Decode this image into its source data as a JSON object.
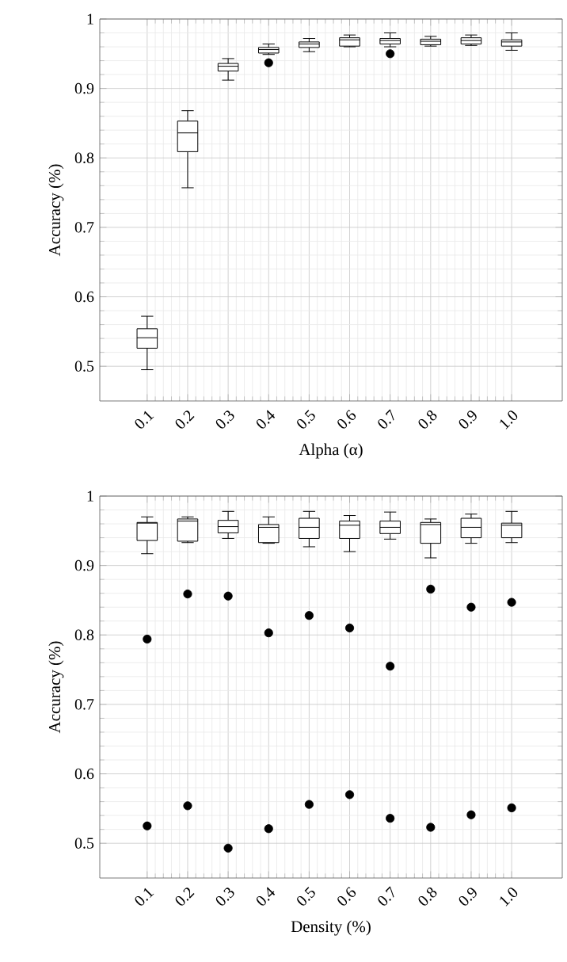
{
  "chart_data": [
    {
      "type": "box",
      "xlabel": "Alpha (α)",
      "ylabel": "Accuracy (%)",
      "grid": true,
      "categories": [
        "0.1",
        "0.2",
        "0.3",
        "0.4",
        "0.5",
        "0.6",
        "0.7",
        "0.8",
        "0.9",
        "1.0"
      ],
      "ylim": [
        0.45,
        1
      ],
      "yticks": [
        0.5,
        0.6,
        0.7,
        0.8,
        0.9,
        1
      ],
      "boxes": [
        {
          "low": 0.495,
          "q1": 0.526,
          "median": 0.541,
          "q3": 0.554,
          "high": 0.572
        },
        {
          "low": 0.757,
          "q1": 0.809,
          "median": 0.836,
          "q3": 0.853,
          "high": 0.868
        },
        {
          "low": 0.912,
          "q1": 0.925,
          "median": 0.932,
          "q3": 0.936,
          "high": 0.943
        },
        {
          "low": 0.949,
          "q1": 0.951,
          "median": 0.956,
          "q3": 0.959,
          "high": 0.964,
          "outliers": [
            0.937
          ]
        },
        {
          "low": 0.953,
          "q1": 0.959,
          "median": 0.964,
          "q3": 0.967,
          "high": 0.972
        },
        {
          "low": 0.96,
          "q1": 0.961,
          "median": 0.97,
          "q3": 0.973,
          "high": 0.977
        },
        {
          "low": 0.96,
          "q1": 0.964,
          "median": 0.969,
          "q3": 0.972,
          "high": 0.98,
          "outliers": [
            0.95
          ]
        },
        {
          "low": 0.961,
          "q1": 0.963,
          "median": 0.968,
          "q3": 0.971,
          "high": 0.975
        },
        {
          "low": 0.962,
          "q1": 0.964,
          "median": 0.969,
          "q3": 0.973,
          "high": 0.977
        },
        {
          "low": 0.955,
          "q1": 0.961,
          "median": 0.967,
          "q3": 0.97,
          "high": 0.98
        }
      ]
    },
    {
      "type": "box",
      "xlabel": "Density (%)",
      "ylabel": "Accuracy (%)",
      "grid": true,
      "categories": [
        "0.1",
        "0.2",
        "0.3",
        "0.4",
        "0.5",
        "0.6",
        "0.7",
        "0.8",
        "0.9",
        "1.0"
      ],
      "ylim": [
        0.45,
        1
      ],
      "yticks": [
        0.5,
        0.6,
        0.7,
        0.8,
        0.9,
        1
      ],
      "boxes": [
        {
          "low": 0.917,
          "q1": 0.936,
          "median": 0.961,
          "q3": 0.962,
          "high": 0.97,
          "outliers": [
            0.794,
            0.525
          ]
        },
        {
          "low": 0.933,
          "q1": 0.935,
          "median": 0.964,
          "q3": 0.967,
          "high": 0.97,
          "outliers": [
            0.859,
            0.554
          ]
        },
        {
          "low": 0.939,
          "q1": 0.947,
          "median": 0.956,
          "q3": 0.965,
          "high": 0.978,
          "outliers": [
            0.856,
            0.493
          ]
        },
        {
          "low": 0.932,
          "q1": 0.933,
          "median": 0.955,
          "q3": 0.959,
          "high": 0.97,
          "outliers": [
            0.803,
            0.521
          ]
        },
        {
          "low": 0.927,
          "q1": 0.939,
          "median": 0.955,
          "q3": 0.968,
          "high": 0.978,
          "outliers": [
            0.828,
            0.556
          ]
        },
        {
          "low": 0.92,
          "q1": 0.939,
          "median": 0.958,
          "q3": 0.964,
          "high": 0.972,
          "outliers": [
            0.81,
            0.57
          ]
        },
        {
          "low": 0.938,
          "q1": 0.946,
          "median": 0.955,
          "q3": 0.964,
          "high": 0.977,
          "outliers": [
            0.755,
            0.536
          ]
        },
        {
          "low": 0.911,
          "q1": 0.932,
          "median": 0.959,
          "q3": 0.962,
          "high": 0.967,
          "outliers": [
            0.866,
            0.523
          ]
        },
        {
          "low": 0.932,
          "q1": 0.94,
          "median": 0.955,
          "q3": 0.968,
          "high": 0.974,
          "outliers": [
            0.84,
            0.541
          ]
        },
        {
          "low": 0.933,
          "q1": 0.94,
          "median": 0.958,
          "q3": 0.961,
          "high": 0.978,
          "outliers": [
            0.847,
            0.551
          ]
        }
      ]
    }
  ]
}
